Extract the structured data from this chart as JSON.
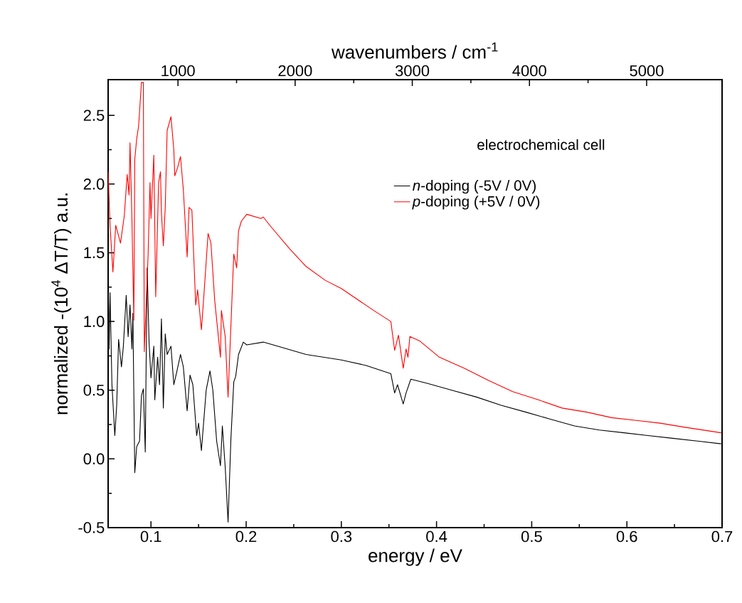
{
  "chart_data": {
    "type": "line",
    "xlabel": "energy / eV",
    "ylabel": "normalized -(10$^{4}$ ΔT/T) a.u.",
    "x2label": "wavenumbers / cm$^{-1}$",
    "legend_title": "electrochemical cell",
    "legend": "top right",
    "xlim": [
      0.055,
      0.7
    ],
    "ylim": [
      -0.5,
      2.76
    ],
    "x2lim": [
      404,
      5644
    ],
    "xticks": [
      0.1,
      0.2,
      0.3,
      0.4,
      0.5,
      0.6,
      0.7
    ],
    "yticks": [
      -0.5,
      {
        "value": 0,
        "label": "0.0"
      },
      0.5,
      {
        "value": 1,
        "label": "1.0"
      },
      1.5,
      {
        "value": 2,
        "label": "2.0"
      },
      2.5
    ],
    "x2ticks": [
      1000,
      2000,
      3000,
      4000,
      5000
    ],
    "series": [
      {
        "name": "*n*-doping (-5V / 0V)",
        "color": "#000000",
        "x": [
          0.055,
          0.056,
          0.057,
          0.059,
          0.062,
          0.064,
          0.066,
          0.069,
          0.071,
          0.074,
          0.076,
          0.078,
          0.08,
          0.081,
          0.083,
          0.085,
          0.088,
          0.09,
          0.092,
          0.094,
          0.095,
          0.096,
          0.098,
          0.1,
          0.103,
          0.104,
          0.107,
          0.109,
          0.111,
          0.113,
          0.115,
          0.117,
          0.121,
          0.124,
          0.127,
          0.131,
          0.134,
          0.138,
          0.141,
          0.144,
          0.148,
          0.15,
          0.153,
          0.158,
          0.162,
          0.165,
          0.169,
          0.173,
          0.175,
          0.178,
          0.181,
          0.184,
          0.187,
          0.189,
          0.192,
          0.197,
          0.2006,
          0.218,
          0.238,
          0.263,
          0.3,
          0.326,
          0.352,
          0.356,
          0.359,
          0.365,
          0.368,
          0.373,
          0.39,
          0.416,
          0.442,
          0.468,
          0.494,
          0.519,
          0.545,
          0.571,
          0.597,
          0.622,
          0.648,
          0.674,
          0.699
        ],
        "values": [
          1.36,
          0.8,
          1.21,
          0.54,
          0.17,
          0.39,
          0.87,
          0.67,
          0.82,
          1.19,
          0.89,
          1.12,
          0.8,
          1.06,
          -0.1,
          0.09,
          0.13,
          0.46,
          0.51,
          0.05,
          0.74,
          1.39,
          0.85,
          0.59,
          0.82,
          0.43,
          0.74,
          0.54,
          1.02,
          0.37,
          0.91,
          0.76,
          0.82,
          0.54,
          0.63,
          0.76,
          0.67,
          0.35,
          0.61,
          0.54,
          0.17,
          0.26,
          0.06,
          0.5,
          0.64,
          0.5,
          0.13,
          -0.05,
          0.24,
          -0.06,
          -0.46,
          0.15,
          0.56,
          0.6,
          0.76,
          0.85,
          0.83,
          0.85,
          0.81,
          0.76,
          0.72,
          0.68,
          0.62,
          0.48,
          0.54,
          0.4,
          0.48,
          0.58,
          0.55,
          0.5,
          0.45,
          0.39,
          0.34,
          0.29,
          0.24,
          0.21,
          0.19,
          0.17,
          0.15,
          0.13,
          0.11
        ]
      },
      {
        "name": "*p*-doping (+5V / 0V)",
        "color": "#ff0000",
        "x": [
          0.055,
          0.057,
          0.06,
          0.063,
          0.068,
          0.072,
          0.075,
          0.077,
          0.078,
          0.08,
          0.082,
          0.083,
          0.085,
          0.087,
          0.09,
          0.092,
          0.093,
          0.097,
          0.099,
          0.1,
          0.103,
          0.105,
          0.108,
          0.11,
          0.111,
          0.113,
          0.115,
          0.117,
          0.121,
          0.124,
          0.125,
          0.128,
          0.131,
          0.134,
          0.138,
          0.14,
          0.143,
          0.147,
          0.149,
          0.153,
          0.156,
          0.16,
          0.163,
          0.167,
          0.173,
          0.174,
          0.178,
          0.181,
          0.186,
          0.187,
          0.19,
          0.192,
          0.195,
          0.2006,
          0.2156,
          0.218,
          0.226,
          0.2455,
          0.263,
          0.283,
          0.3,
          0.334,
          0.352,
          0.356,
          0.36,
          0.365,
          0.368,
          0.37,
          0.372,
          0.382,
          0.403,
          0.429,
          0.455,
          0.48,
          0.507,
          0.532,
          0.558,
          0.584,
          0.61,
          0.635,
          0.661,
          0.699
        ],
        "values": [
          2.09,
          1.7,
          1.36,
          1.7,
          1.57,
          1.77,
          2.07,
          1.92,
          2.3,
          1.75,
          1.01,
          2.18,
          2.33,
          2.42,
          2.74,
          2.74,
          0.78,
          1.49,
          2.01,
          1.75,
          2.21,
          1.18,
          2.01,
          2.09,
          1.79,
          1.55,
          1.83,
          2.39,
          2.49,
          2.25,
          2.06,
          2.12,
          2.2,
          1.96,
          1.47,
          1.83,
          1.81,
          1.12,
          1.23,
          0.94,
          1.23,
          1.64,
          1.57,
          1.15,
          0.74,
          1.08,
          0.89,
          0.45,
          1.32,
          1.49,
          1.39,
          1.66,
          1.73,
          1.78,
          1.75,
          1.76,
          1.69,
          1.53,
          1.4,
          1.3,
          1.24,
          1.08,
          1.0,
          0.79,
          0.9,
          0.66,
          0.8,
          0.74,
          0.89,
          0.86,
          0.74,
          0.66,
          0.57,
          0.49,
          0.43,
          0.37,
          0.34,
          0.3,
          0.28,
          0.26,
          0.23,
          0.19
        ]
      }
    ]
  }
}
